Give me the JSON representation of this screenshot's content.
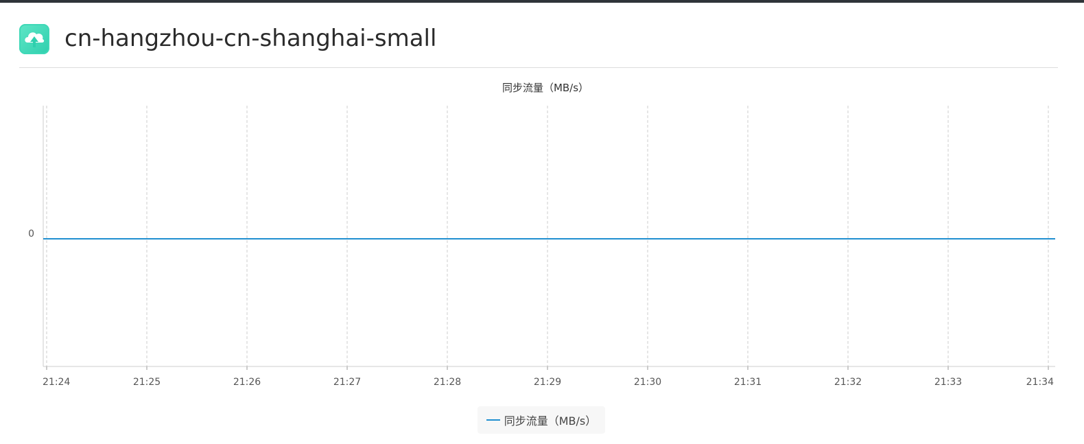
{
  "header": {
    "title": "cn-hangzhou-cn-shanghai-small",
    "logo_icon": "cloud-upload-icon"
  },
  "colors": {
    "accent": "#1f8fd0",
    "logo": "#3fd8b7",
    "topbar": "#2f3439",
    "grid": "#cccccc"
  },
  "chart_data": {
    "type": "line",
    "title": "同步流量（MB/s）",
    "xlabel": "",
    "ylabel": "",
    "x": [
      "21:24",
      "21:25",
      "21:26",
      "21:27",
      "21:28",
      "21:29",
      "21:30",
      "21:31",
      "21:32",
      "21:33",
      "21:34"
    ],
    "yticks": [
      "0"
    ],
    "series": [
      {
        "name": "同步流量（MB/s）",
        "values": [
          0,
          0,
          0,
          0,
          0,
          0,
          0,
          0,
          0,
          0,
          0
        ]
      }
    ],
    "ylim": [
      -1,
      1
    ],
    "grid": "vertical-dashed",
    "legend": "bottom-center"
  }
}
